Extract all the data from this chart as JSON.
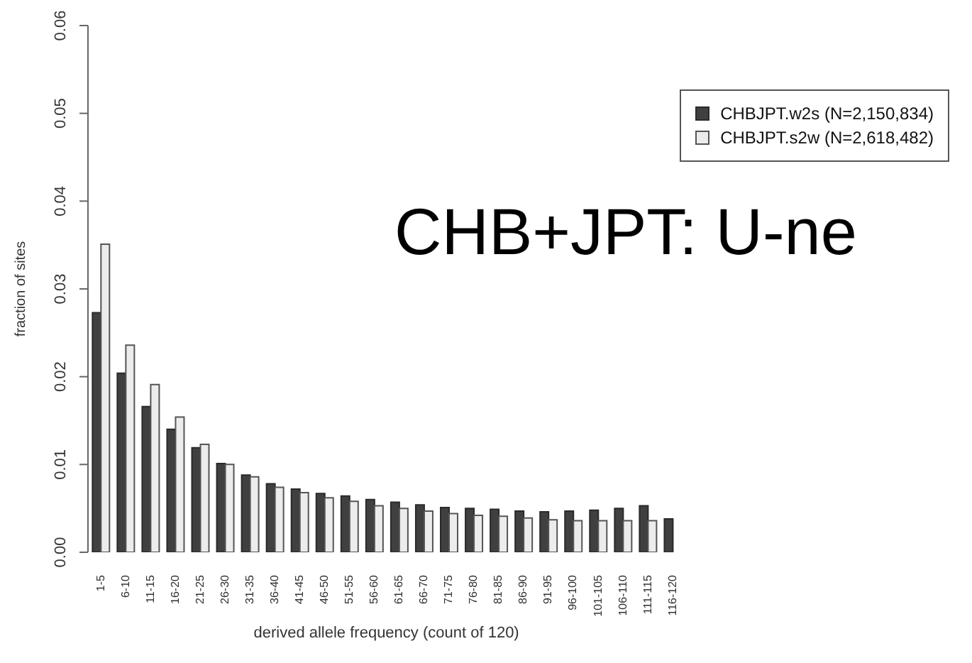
{
  "chart_data": {
    "type": "bar",
    "title": "CHB+JPT: U-ne",
    "xlabel": "derived allele frequency (count of 120)",
    "ylabel": "fraction of sites",
    "categories": [
      "1-5",
      "6-10",
      "11-15",
      "16-20",
      "21-25",
      "26-30",
      "31-35",
      "36-40",
      "41-45",
      "46-50",
      "51-55",
      "56-60",
      "61-65",
      "66-70",
      "71-75",
      "76-80",
      "81-85",
      "86-90",
      "91-95",
      "96-100",
      "101-105",
      "106-110",
      "111-115",
      "116-120"
    ],
    "series": [
      {
        "name": "CHBJPT.w2s (N=2,150,834)",
        "color": "#404040",
        "values": [
          0.0273,
          0.0204,
          0.0166,
          0.014,
          0.0119,
          0.0101,
          0.0088,
          0.0078,
          0.0072,
          0.0067,
          0.0064,
          0.006,
          0.0057,
          0.0054,
          0.0051,
          0.005,
          0.0049,
          0.0047,
          0.0046,
          0.0047,
          0.0048,
          0.005,
          0.0053,
          0.0038
        ]
      },
      {
        "name": "CHBJPT.s2w (N=2,618,482)",
        "color": "#ececec",
        "values": [
          0.0351,
          0.0236,
          0.0191,
          0.0154,
          0.0123,
          0.01,
          0.0086,
          0.0074,
          0.0068,
          0.0062,
          0.0058,
          0.0053,
          0.005,
          0.0047,
          0.0044,
          0.0042,
          0.0041,
          0.0039,
          0.0037,
          0.0036,
          0.0036,
          0.0036,
          0.0036,
          null
        ]
      }
    ],
    "ylim": [
      0,
      0.06
    ],
    "yticks": [
      {
        "value": 0,
        "label": "0.00"
      },
      {
        "value": 0.01,
        "label": "0.01"
      },
      {
        "value": 0.02,
        "label": "0.02"
      },
      {
        "value": 0.03,
        "label": "0.03"
      },
      {
        "value": 0.04,
        "label": "0.04"
      },
      {
        "value": 0.05,
        "label": "0.05"
      },
      {
        "value": 0.06,
        "label": "0.06"
      }
    ],
    "grid": false,
    "legend": "top right"
  }
}
